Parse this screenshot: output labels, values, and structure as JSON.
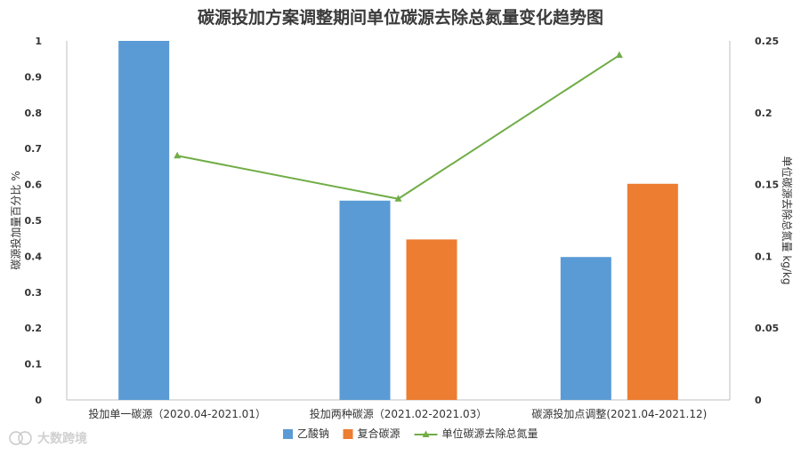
{
  "chart_data": {
    "type": "bar",
    "title": "碳源投加方案调整期间单位碳源去除总氮量变化趋势图",
    "ylabel": "碳源投加量百分比 %",
    "y2label": "单位碳源去除总氮量 kg/kg",
    "ylim": [
      0,
      1
    ],
    "y2lim": [
      0,
      0.25
    ],
    "yticks": [
      "0",
      "0.1",
      "0.2",
      "0.3",
      "0.4",
      "0.5",
      "0.6",
      "0.7",
      "0.8",
      "0.9",
      "1"
    ],
    "y2ticks": [
      "0",
      "0.05",
      "0.1",
      "0.15",
      "0.2",
      "0.25"
    ],
    "categories": [
      "投加单一碳源（2020.04-2021.01）",
      "投加两种碳源（2021.02-2021.03）",
      "碳源投加点调整(2021.04-2021.12)"
    ],
    "series": [
      {
        "name": "乙酸钠",
        "type": "bar",
        "axis": "left",
        "color": "#5b9bd5",
        "values": [
          1.0,
          0.555,
          0.398
        ]
      },
      {
        "name": "复合碳源",
        "type": "bar",
        "axis": "left",
        "color": "#ed7d31",
        "values": [
          0,
          0.447,
          0.602
        ]
      },
      {
        "name": "单位碳源去除总氮量",
        "type": "line",
        "axis": "right",
        "color": "#70ad47",
        "values": [
          0.17,
          0.14,
          0.24
        ]
      }
    ],
    "grid": false,
    "legend": "bottom"
  },
  "watermark": {
    "text": "大数跨境"
  }
}
